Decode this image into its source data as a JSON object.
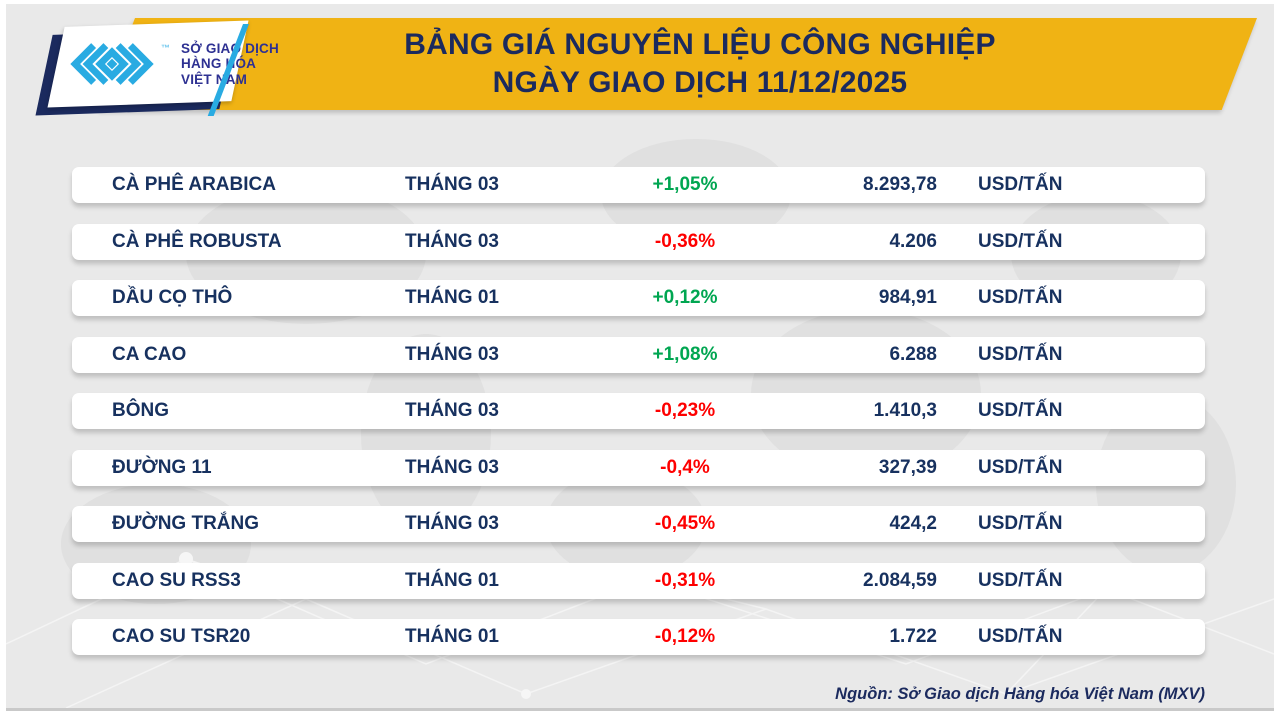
{
  "colors": {
    "gold": "#F0B314",
    "navy_title": "#1B2A5E",
    "navy_row": "#17315F",
    "logo_blue": "#29ABE2",
    "logo_text_navy": "#2E3192",
    "green_up": "#00A651",
    "red_down": "#FE0000",
    "panel_gray": "#E9E9E9"
  },
  "header": {
    "title_line1": "BẢNG GIÁ NGUYÊN LIỆU CÔNG NGHIỆP",
    "title_line2": "NGÀY GIAO DỊCH 11/12/2025"
  },
  "logo": {
    "tm": "™",
    "line1": "SỞ GIAO DỊCH",
    "line2": "HÀNG HÓA",
    "line3": "VIỆT NAM"
  },
  "table": {
    "rows": [
      {
        "name": "CÀ PHÊ ARABICA",
        "month": "THÁNG 03",
        "change": "+1,05%",
        "dir": "up",
        "price": "8.293,78",
        "unit": "USD/TẤN"
      },
      {
        "name": "CÀ PHÊ ROBUSTA",
        "month": "THÁNG 03",
        "change": "-0,36%",
        "dir": "down",
        "price": "4.206",
        "unit": "USD/TẤN"
      },
      {
        "name": "DẦU CỌ THÔ",
        "month": "THÁNG 01",
        "change": "+0,12%",
        "dir": "up",
        "price": "984,91",
        "unit": "USD/TẤN"
      },
      {
        "name": "CA CAO",
        "month": "THÁNG 03",
        "change": "+1,08%",
        "dir": "up",
        "price": "6.288",
        "unit": "USD/TẤN"
      },
      {
        "name": "BÔNG",
        "month": "THÁNG 03",
        "change": "-0,23%",
        "dir": "down",
        "price": "1.410,3",
        "unit": "USD/TẤN"
      },
      {
        "name": "ĐƯỜNG 11",
        "month": "THÁNG 03",
        "change": "-0,4%",
        "dir": "down",
        "price": "327,39",
        "unit": "USD/TẤN"
      },
      {
        "name": "ĐƯỜNG TRẮNG",
        "month": "THÁNG 03",
        "change": "-0,45%",
        "dir": "down",
        "price": "424,2",
        "unit": "USD/TẤN"
      },
      {
        "name": "CAO SU RSS3",
        "month": "THÁNG 01",
        "change": "-0,31%",
        "dir": "down",
        "price": "2.084,59",
        "unit": "USD/TẤN"
      },
      {
        "name": "CAO SU TSR20",
        "month": "THÁNG 01",
        "change": "-0,12%",
        "dir": "down",
        "price": "1.722",
        "unit": "USD/TẤN"
      }
    ]
  },
  "footer": {
    "source": "Nguồn: Sở Giao dịch Hàng hóa Việt Nam (MXV)"
  },
  "chart_data": {
    "type": "table",
    "title": "BẢNG GIÁ NGUYÊN LIỆU CÔNG NGHIỆP",
    "subtitle": "NGÀY GIAO DỊCH 11/12/2025",
    "rows": [
      [
        "CÀ PHÊ ARABICA",
        "THÁNG 03",
        "+1,05%",
        "8.293,78",
        "USD/TẤN"
      ],
      [
        "CÀ PHÊ ROBUSTA",
        "THÁNG 03",
        "-0,36%",
        "4.206",
        "USD/TẤN"
      ],
      [
        "DẦU CỌ THÔ",
        "THÁNG 01",
        "+0,12%",
        "984,91",
        "USD/TẤN"
      ],
      [
        "CA CAO",
        "THÁNG 03",
        "+1,08%",
        "6.288",
        "USD/TẤN"
      ],
      [
        "BÔNG",
        "THÁNG 03",
        "-0,23%",
        "1.410,3",
        "USD/TẤN"
      ],
      [
        "ĐƯỜNG 11",
        "THÁNG 03",
        "-0,4%",
        "327,39",
        "USD/TẤN"
      ],
      [
        "ĐƯỜNG TRẮNG",
        "THÁNG 03",
        "-0,45%",
        "424,2",
        "USD/TẤN"
      ],
      [
        "CAO SU RSS3",
        "THÁNG 01",
        "-0,31%",
        "2.084,59",
        "USD/TẤN"
      ],
      [
        "CAO SU TSR20",
        "THÁNG 01",
        "-0,12%",
        "1.722",
        "USD/TẤN"
      ]
    ],
    "change_percent_numeric": [
      1.05,
      -0.36,
      0.12,
      1.08,
      -0.23,
      -0.4,
      -0.45,
      -0.31,
      -0.12
    ],
    "price_numeric": [
      8293.78,
      4206,
      984.91,
      6288,
      1410.3,
      327.39,
      424.2,
      2084.59,
      1722
    ],
    "unit": "USD/TẤN"
  }
}
